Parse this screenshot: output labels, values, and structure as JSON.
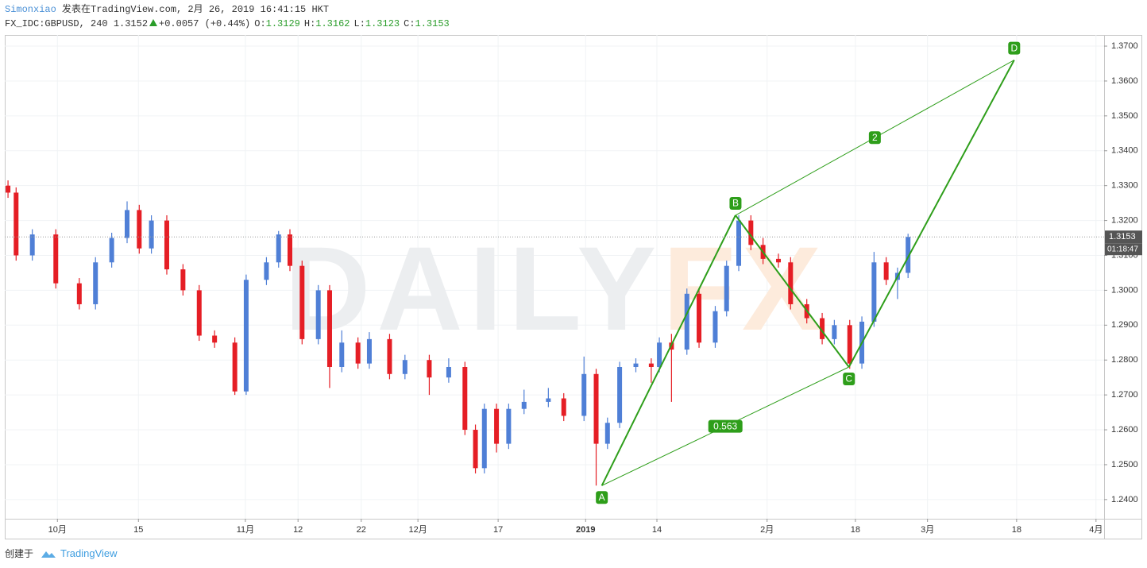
{
  "header": {
    "author": "Simonxiao",
    "published": "发表在TradingView.com, 2月 26, 2019 16:41:15 HKT",
    "symbol": "FX_IDC:GBPUSD, 240 1.3152",
    "change": "+0.0057 (+0.44%)",
    "ohlc": [
      [
        "O:",
        "1.3129"
      ],
      [
        "H:",
        "1.3162"
      ],
      [
        "L:",
        "1.3123"
      ],
      [
        "C:",
        "1.3153"
      ]
    ]
  },
  "footer": {
    "created": "创建于",
    "brand": "TradingView"
  },
  "chart_data": {
    "type": "candlestick",
    "up_color": "#4f7fd6",
    "down_color": "#e51e25",
    "grid": true,
    "watermark": [
      "DAILY",
      "FX"
    ],
    "xlim": [
      -6.5,
      129.2
    ],
    "ylim": [
      1.2345,
      1.3732
    ],
    "xticks": [
      {
        "value": 0,
        "label": "10月"
      },
      {
        "value": 10,
        "label": "15"
      },
      {
        "value": 23.2,
        "label": "11月"
      },
      {
        "value": 29.7,
        "label": "12"
      },
      {
        "value": 37.5,
        "label": "22"
      },
      {
        "value": 44.5,
        "label": "12月"
      },
      {
        "value": 54.4,
        "label": "17"
      },
      {
        "value": 65.2,
        "label": "2019"
      },
      {
        "value": 74,
        "label": "14"
      },
      {
        "value": 87.6,
        "label": "2月"
      },
      {
        "value": 98.5,
        "label": "18"
      },
      {
        "value": 107.4,
        "label": "3月"
      },
      {
        "value": 118.4,
        "label": "18"
      },
      {
        "value": 128.2,
        "label": "4月"
      }
    ],
    "yticks": [
      {
        "value": 1.24,
        "label": "1.2400"
      },
      {
        "value": 1.25,
        "label": "1.2500"
      },
      {
        "value": 1.26,
        "label": "1.2600"
      },
      {
        "value": 1.27,
        "label": "1.2700"
      },
      {
        "value": 1.28,
        "label": "1.2800"
      },
      {
        "value": 1.29,
        "label": "1.2900"
      },
      {
        "value": 1.3,
        "label": "1.3000"
      },
      {
        "value": 1.31,
        "label": "1.3100"
      },
      {
        "value": 1.32,
        "label": "1.3200"
      },
      {
        "value": 1.33,
        "label": "1.3300"
      },
      {
        "value": 1.34,
        "label": "1.3400"
      },
      {
        "value": 1.35,
        "label": "1.3500"
      },
      {
        "value": 1.36,
        "label": "1.3600"
      },
      {
        "value": 1.37,
        "label": "1.3700"
      }
    ],
    "x": [
      -6.1,
      -5.1,
      -3.1,
      -0.2,
      2.7,
      4.7,
      6.7,
      8.6,
      10.1,
      11.6,
      13.5,
      15.5,
      17.5,
      19.4,
      21.9,
      23.3,
      25.8,
      27.3,
      28.7,
      30.2,
      32.2,
      33.6,
      35.1,
      37.1,
      38.5,
      41,
      42.9,
      45.9,
      48.3,
      50.3,
      51.6,
      52.7,
      54.2,
      55.7,
      57.6,
      60.6,
      62.5,
      65,
      66.5,
      67.9,
      69.4,
      71.4,
      73.3,
      74.3,
      75.8,
      77.7,
      79.2,
      81.2,
      82.6,
      84.1,
      85.6,
      87.1,
      89,
      90.5,
      92.5,
      94.4,
      95.9,
      97.8,
      99.3,
      100.8,
      102.3,
      103.7,
      105
    ],
    "open": [
      1.33,
      1.328,
      1.31,
      1.316,
      1.302,
      1.296,
      1.308,
      1.315,
      1.323,
      1.312,
      1.32,
      1.306,
      1.3,
      1.287,
      1.285,
      1.271,
      1.303,
      1.308,
      1.316,
      1.307,
      1.286,
      1.3,
      1.278,
      1.285,
      1.279,
      1.286,
      1.276,
      1.28,
      1.275,
      1.278,
      1.26,
      1.249,
      1.266,
      1.256,
      1.266,
      1.268,
      1.269,
      1.264,
      1.276,
      1.256,
      1.262,
      1.278,
      1.279,
      1.278,
      1.285,
      1.283,
      1.299,
      1.285,
      1.294,
      1.307,
      1.32,
      1.313,
      1.309,
      1.308,
      1.296,
      1.292,
      1.286,
      1.29,
      1.279,
      1.291,
      1.308,
      1.303,
      1.305
    ],
    "high": [
      1.3315,
      1.3295,
      1.3175,
      1.3175,
      1.3035,
      1.3095,
      1.3165,
      1.3255,
      1.3245,
      1.3215,
      1.3215,
      1.3075,
      1.3015,
      1.2885,
      1.2865,
      1.3045,
      1.3095,
      1.317,
      1.3175,
      1.3085,
      1.3015,
      1.3015,
      1.2885,
      1.2865,
      1.288,
      1.2875,
      1.2815,
      1.2815,
      1.2805,
      1.2795,
      1.2615,
      1.2675,
      1.2675,
      1.2675,
      1.2715,
      1.272,
      1.2705,
      1.281,
      1.2775,
      1.2635,
      1.2795,
      1.2805,
      1.2805,
      1.2865,
      1.2875,
      1.3005,
      1.3005,
      1.2955,
      1.3085,
      1.3215,
      1.3215,
      1.315,
      1.3105,
      1.3095,
      1.2975,
      1.2935,
      1.2915,
      1.2915,
      1.2925,
      1.311,
      1.3095,
      1.3065,
      1.3162
    ],
    "low": [
      1.3265,
      1.3085,
      1.3085,
      1.3005,
      1.2945,
      1.2945,
      1.3065,
      1.3135,
      1.3105,
      1.3105,
      1.3045,
      1.2985,
      1.2855,
      1.2835,
      1.27,
      1.27,
      1.3015,
      1.3065,
      1.3055,
      1.2845,
      1.2845,
      1.272,
      1.2765,
      1.2775,
      1.2775,
      1.2745,
      1.2745,
      1.27,
      1.2735,
      1.2585,
      1.2475,
      1.2475,
      1.2535,
      1.2545,
      1.2645,
      1.2665,
      1.2625,
      1.2625,
      1.244,
      1.2545,
      1.2605,
      1.2765,
      1.2735,
      1.2765,
      1.268,
      1.2815,
      1.2835,
      1.2835,
      1.2925,
      1.3055,
      1.3115,
      1.3075,
      1.3065,
      1.2945,
      1.2905,
      1.2845,
      1.2845,
      1.2775,
      1.2775,
      1.2895,
      1.3015,
      1.2975,
      1.3035
    ],
    "close": [
      1.328,
      1.31,
      1.316,
      1.302,
      1.296,
      1.308,
      1.315,
      1.323,
      1.312,
      1.32,
      1.306,
      1.3,
      1.287,
      1.285,
      1.271,
      1.303,
      1.308,
      1.316,
      1.307,
      1.286,
      1.3,
      1.278,
      1.285,
      1.279,
      1.286,
      1.276,
      1.28,
      1.275,
      1.278,
      1.26,
      1.249,
      1.266,
      1.256,
      1.266,
      1.268,
      1.269,
      1.264,
      1.276,
      1.256,
      1.262,
      1.278,
      1.279,
      1.278,
      1.285,
      1.283,
      1.299,
      1.285,
      1.294,
      1.307,
      1.32,
      1.313,
      1.309,
      1.308,
      1.296,
      1.292,
      1.286,
      1.29,
      1.279,
      1.291,
      1.308,
      1.303,
      1.305,
      1.3153
    ],
    "last_price": 1.3153,
    "countdown": "01:18:47",
    "pattern": {
      "color": "#2e9e1a",
      "points": [
        {
          "label": "A",
          "x": 67.2,
          "y": 1.244
        },
        {
          "label": "B",
          "x": 83.7,
          "y": 1.3215
        },
        {
          "label": "C",
          "x": 97.7,
          "y": 1.278
        },
        {
          "label": "D",
          "x": 118.1,
          "y": 1.366
        }
      ],
      "ratios": [
        0.563,
        2
      ]
    }
  }
}
